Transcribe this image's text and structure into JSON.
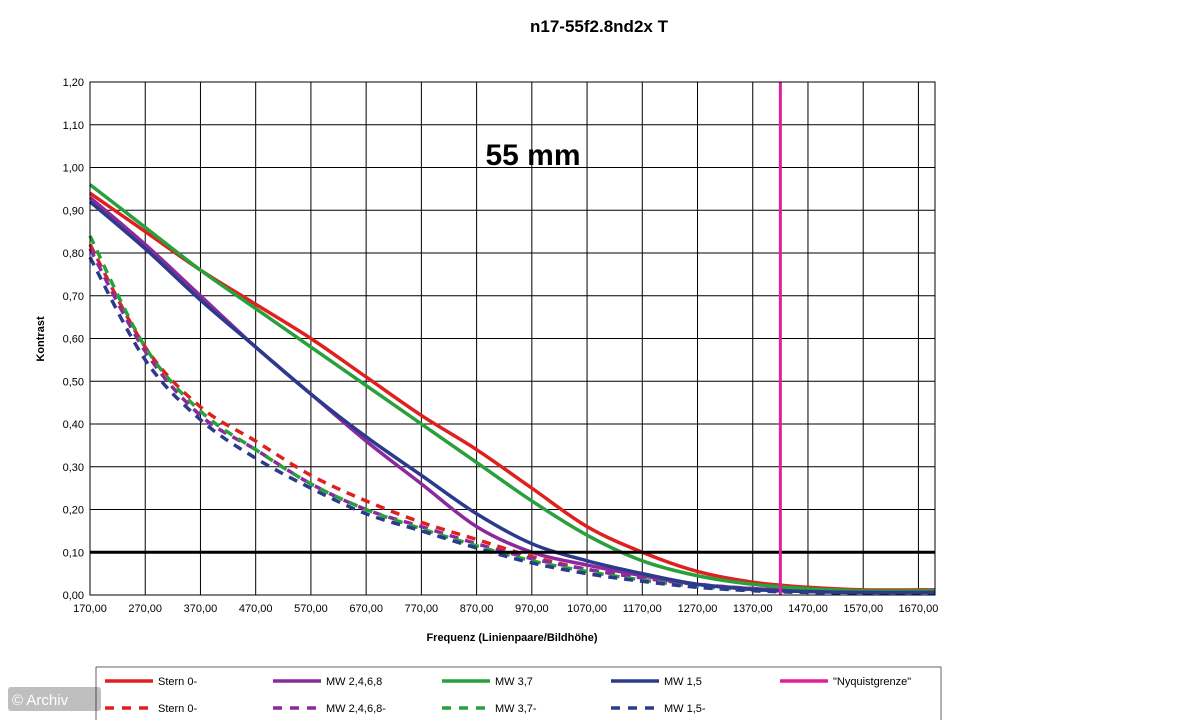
{
  "chart_data": {
    "type": "line",
    "title": "n17-55f2.8nd2x T",
    "xlabel": "Frequenz (Linienpaare/Bildhöhe)",
    "ylabel": "Kontrast",
    "annotation": "55 mm",
    "xlim": [
      170,
      1700
    ],
    "ylim": [
      0,
      1.2
    ],
    "x_ticks": [
      "170,00",
      "270,00",
      "370,00",
      "470,00",
      "570,00",
      "670,00",
      "770,00",
      "870,00",
      "970,00",
      "1070,00",
      "1170,00",
      "1270,00",
      "1370,00",
      "1470,00",
      "1570,00",
      "1670,00"
    ],
    "y_ticks": [
      "0,00",
      "0,10",
      "0,20",
      "0,30",
      "0,40",
      "0,50",
      "0,60",
      "0,70",
      "0,80",
      "0,90",
      "1,00",
      "1,10",
      "1,20"
    ],
    "grid": true,
    "legend_position": "bottom",
    "reference_line": {
      "y": 0.1,
      "color": "#000000"
    },
    "nyquist": {
      "name": "\"Nyquistgrenze\"",
      "x": 1420,
      "color": "#e0209a"
    },
    "series": [
      {
        "name": "Stern 0-",
        "color": "#e0201e",
        "style": "solid",
        "x": [
          170,
          270,
          370,
          470,
          570,
          670,
          770,
          870,
          970,
          1070,
          1170,
          1270,
          1370,
          1470,
          1570,
          1700
        ],
        "y": [
          0.94,
          0.85,
          0.76,
          0.68,
          0.6,
          0.51,
          0.42,
          0.34,
          0.25,
          0.16,
          0.1,
          0.055,
          0.03,
          0.018,
          0.012,
          0.012
        ]
      },
      {
        "name": "MW 2,4,6,8",
        "color": "#8b2a9c",
        "style": "solid",
        "x": [
          170,
          270,
          370,
          470,
          570,
          670,
          770,
          870,
          970,
          1070,
          1170,
          1270,
          1370,
          1470,
          1570,
          1700
        ],
        "y": [
          0.93,
          0.82,
          0.7,
          0.58,
          0.47,
          0.36,
          0.26,
          0.16,
          0.1,
          0.07,
          0.045,
          0.025,
          0.015,
          0.01,
          0.008,
          0.008
        ]
      },
      {
        "name": "MW 3,7",
        "color": "#28a03c",
        "style": "solid",
        "x": [
          170,
          270,
          370,
          470,
          570,
          670,
          770,
          870,
          970,
          1070,
          1170,
          1270,
          1370,
          1470,
          1570,
          1700
        ],
        "y": [
          0.96,
          0.86,
          0.76,
          0.67,
          0.58,
          0.49,
          0.4,
          0.31,
          0.22,
          0.14,
          0.08,
          0.045,
          0.025,
          0.015,
          0.01,
          0.01
        ]
      },
      {
        "name": "MW 1,5",
        "color": "#2a3a8c",
        "style": "solid",
        "x": [
          170,
          270,
          370,
          470,
          570,
          670,
          770,
          870,
          970,
          1070,
          1170,
          1270,
          1370,
          1470,
          1570,
          1700
        ],
        "y": [
          0.92,
          0.81,
          0.69,
          0.58,
          0.47,
          0.37,
          0.28,
          0.19,
          0.12,
          0.08,
          0.05,
          0.025,
          0.013,
          0.008,
          0.006,
          0.006
        ]
      },
      {
        "name": "Stern 0-",
        "color": "#e0201e",
        "style": "dashed",
        "x": [
          170,
          270,
          370,
          470,
          570,
          670,
          770,
          870,
          970,
          1070,
          1170,
          1270,
          1370,
          1470,
          1570,
          1700
        ],
        "y": [
          0.82,
          0.58,
          0.44,
          0.36,
          0.28,
          0.22,
          0.17,
          0.13,
          0.09,
          0.06,
          0.04,
          0.025,
          0.015,
          0.01,
          0.008,
          0.008
        ]
      },
      {
        "name": "MW 2,4,6,8-",
        "color": "#8b2a9c",
        "style": "dashed",
        "x": [
          170,
          270,
          370,
          470,
          570,
          670,
          770,
          870,
          970,
          1070,
          1170,
          1270,
          1370,
          1470,
          1570,
          1700
        ],
        "y": [
          0.81,
          0.57,
          0.42,
          0.34,
          0.26,
          0.2,
          0.16,
          0.12,
          0.085,
          0.06,
          0.04,
          0.025,
          0.015,
          0.01,
          0.008,
          0.008
        ]
      },
      {
        "name": "MW 3,7-",
        "color": "#28a03c",
        "style": "dashed",
        "x": [
          170,
          270,
          370,
          470,
          570,
          670,
          770,
          870,
          970,
          1070,
          1170,
          1270,
          1370,
          1470,
          1570,
          1700
        ],
        "y": [
          0.84,
          0.58,
          0.43,
          0.34,
          0.26,
          0.2,
          0.155,
          0.115,
          0.08,
          0.055,
          0.035,
          0.02,
          0.012,
          0.008,
          0.006,
          0.006
        ]
      },
      {
        "name": "MW 1,5-",
        "color": "#2a3a8c",
        "style": "dashed",
        "x": [
          170,
          270,
          370,
          470,
          570,
          670,
          770,
          870,
          970,
          1070,
          1170,
          1270,
          1370,
          1470,
          1570,
          1700
        ],
        "y": [
          0.79,
          0.55,
          0.41,
          0.32,
          0.25,
          0.19,
          0.15,
          0.11,
          0.075,
          0.05,
          0.032,
          0.018,
          0.01,
          0.006,
          0.005,
          0.005
        ]
      }
    ],
    "legend": [
      {
        "label": "Stern 0-",
        "color": "#e0201e",
        "style": "solid"
      },
      {
        "label": "MW 2,4,6,8",
        "color": "#8b2a9c",
        "style": "solid"
      },
      {
        "label": "MW 3,7",
        "color": "#28a03c",
        "style": "solid"
      },
      {
        "label": "MW 1,5",
        "color": "#2a3a8c",
        "style": "solid"
      },
      {
        "label": "\"Nyquistgrenze\"",
        "color": "#e0209a",
        "style": "solid"
      },
      {
        "label": "Stern 0-",
        "color": "#e0201e",
        "style": "dashed"
      },
      {
        "label": "MW 2,4,6,8-",
        "color": "#8b2a9c",
        "style": "dashed"
      },
      {
        "label": "MW 3,7-",
        "color": "#28a03c",
        "style": "dashed"
      },
      {
        "label": "MW 1,5-",
        "color": "#2a3a8c",
        "style": "dashed"
      }
    ]
  },
  "watermark": "© Archiv"
}
